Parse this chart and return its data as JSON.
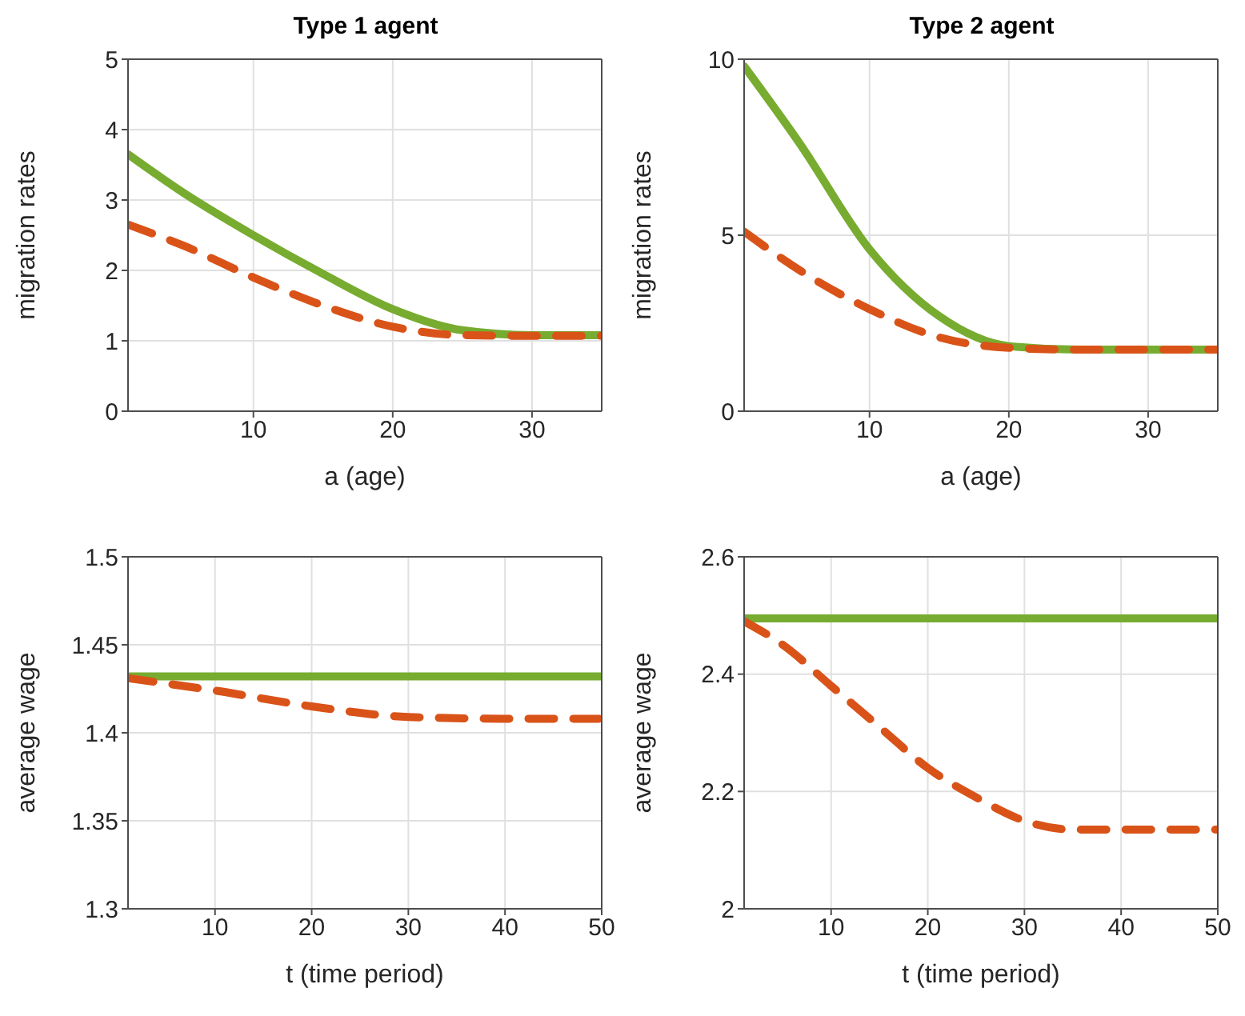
{
  "chart_data": [
    {
      "type": "line",
      "title": "Type 1 agent",
      "xlabel": "a (age)",
      "ylabel": "migration rates",
      "x": [
        1,
        5,
        10,
        15,
        20,
        25,
        30,
        35
      ],
      "xlim": [
        1,
        35
      ],
      "xticks": [
        10,
        20,
        30
      ],
      "ylim": [
        0,
        5
      ],
      "yticks": [
        0,
        1,
        2,
        3,
        4,
        5
      ],
      "grid": true,
      "series": [
        {
          "color": "#77ac30",
          "line_style": "solid",
          "values": [
            3.65,
            3.1,
            2.5,
            1.95,
            1.45,
            1.15,
            1.08,
            1.08
          ]
        },
        {
          "color": "#d95319",
          "line_style": "dashed",
          "values": [
            2.65,
            2.35,
            1.9,
            1.5,
            1.2,
            1.08,
            1.07,
            1.07
          ]
        }
      ]
    },
    {
      "type": "line",
      "title": "Type 2 agent",
      "xlabel": "a (age)",
      "ylabel": "migration rates",
      "x": [
        1,
        5,
        10,
        15,
        20,
        25,
        30,
        35
      ],
      "xlim": [
        1,
        35
      ],
      "xticks": [
        10,
        20,
        30
      ],
      "ylim": [
        0,
        10
      ],
      "yticks": [
        0,
        5,
        10
      ],
      "grid": true,
      "series": [
        {
          "color": "#77ac30",
          "line_style": "solid",
          "values": [
            9.8,
            7.6,
            4.6,
            2.7,
            1.85,
            1.75,
            1.75,
            1.75
          ]
        },
        {
          "color": "#d95319",
          "line_style": "dashed",
          "values": [
            5.1,
            4.0,
            2.9,
            2.1,
            1.8,
            1.75,
            1.75,
            1.75
          ]
        }
      ]
    },
    {
      "type": "line",
      "xlabel": "t (time period)",
      "ylabel": "average wage",
      "x": [
        1,
        10,
        20,
        30,
        40,
        50
      ],
      "xlim": [
        1,
        50
      ],
      "xticks": [
        10,
        20,
        30,
        40,
        50
      ],
      "ylim": [
        1.3,
        1.5
      ],
      "yticks": [
        1.3,
        1.35,
        1.4,
        1.45,
        1.5
      ],
      "grid": true,
      "series": [
        {
          "color": "#77ac30",
          "line_style": "solid",
          "values": [
            1.432,
            1.432,
            1.432,
            1.432,
            1.432,
            1.432
          ]
        },
        {
          "color": "#d95319",
          "line_style": "dashed",
          "values": [
            1.431,
            1.424,
            1.415,
            1.409,
            1.408,
            1.408
          ]
        }
      ]
    },
    {
      "type": "line",
      "xlabel": "t (time period)",
      "ylabel": "average wage",
      "x": [
        1,
        5,
        10,
        15,
        20,
        25,
        30,
        35,
        40,
        50
      ],
      "xlim": [
        1,
        50
      ],
      "xticks": [
        10,
        20,
        30,
        40,
        50
      ],
      "ylim": [
        2,
        2.6
      ],
      "yticks": [
        2,
        2.2,
        2.4,
        2.6
      ],
      "grid": true,
      "series": [
        {
          "color": "#77ac30",
          "line_style": "solid",
          "values": [
            2.495,
            2.495,
            2.495,
            2.495,
            2.495,
            2.495,
            2.495,
            2.495,
            2.495,
            2.495
          ]
        },
        {
          "color": "#d95319",
          "line_style": "dashed",
          "values": [
            2.49,
            2.45,
            2.38,
            2.31,
            2.24,
            2.19,
            2.15,
            2.135,
            2.135,
            2.135
          ]
        }
      ]
    }
  ]
}
